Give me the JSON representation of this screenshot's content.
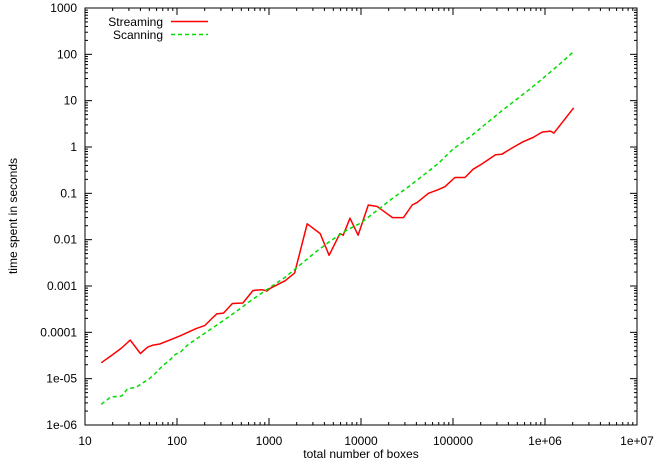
{
  "figure": {
    "background": "#ffffff",
    "axis_color": "#000000",
    "xlabel": "total number of boxes",
    "ylabel": "time spent in seconds"
  },
  "chart_data": {
    "type": "line",
    "title": "",
    "xlabel": "total number of boxes",
    "ylabel": "time spent in seconds",
    "x_scale": "log",
    "y_scale": "log",
    "xlim": [
      10,
      10000000
    ],
    "ylim": [
      1e-06,
      1000
    ],
    "x_tick_labels": [
      "10",
      "100",
      "1000",
      "10000",
      "100000",
      "1e+06",
      "1e+07"
    ],
    "y_tick_labels": [
      "1000",
      "100",
      "10",
      "1",
      "0.1",
      "0.01",
      "0.001",
      "0.0001",
      "1e-05",
      "1e-06"
    ],
    "grid": false,
    "legend": {
      "position": "top-left-inside",
      "entries": [
        "Streaming",
        "Scanning"
      ]
    },
    "series": [
      {
        "name": "Streaming",
        "color": "#ff0000",
        "line_style": "solid",
        "points": [
          [
            15,
            2.2e-05
          ],
          [
            20,
            3.3e-05
          ],
          [
            25,
            4.6e-05
          ],
          [
            31,
            6.8e-05
          ],
          [
            40,
            3.5e-05
          ],
          [
            48,
            4.8e-05
          ],
          [
            55,
            5.3e-05
          ],
          [
            65,
            5.6e-05
          ],
          [
            80,
            6.6e-05
          ],
          [
            110,
            8.5e-05
          ],
          [
            160,
            0.00012
          ],
          [
            200,
            0.00014
          ],
          [
            240,
            0.0002
          ],
          [
            270,
            0.00025
          ],
          [
            320,
            0.00026
          ],
          [
            400,
            0.00042
          ],
          [
            520,
            0.00043
          ],
          [
            670,
            0.0008
          ],
          [
            840,
            0.00083
          ],
          [
            950,
            0.00078
          ],
          [
            1020,
            0.00088
          ],
          [
            1500,
            0.0013
          ],
          [
            1900,
            0.0019
          ],
          [
            2600,
            0.022
          ],
          [
            3600,
            0.0135
          ],
          [
            4500,
            0.0046
          ],
          [
            5900,
            0.0135
          ],
          [
            6400,
            0.0125
          ],
          [
            7600,
            0.029
          ],
          [
            9300,
            0.0125
          ],
          [
            12000,
            0.056
          ],
          [
            15000,
            0.052
          ],
          [
            18000,
            0.04
          ],
          [
            22000,
            0.03
          ],
          [
            29000,
            0.03
          ],
          [
            36000,
            0.056
          ],
          [
            41000,
            0.064
          ],
          [
            54000,
            0.1
          ],
          [
            69000,
            0.12
          ],
          [
            82000,
            0.14
          ],
          [
            105000,
            0.22
          ],
          [
            135000,
            0.22
          ],
          [
            165000,
            0.33
          ],
          [
            210000,
            0.44
          ],
          [
            290000,
            0.68
          ],
          [
            340000,
            0.7
          ],
          [
            450000,
            0.98
          ],
          [
            580000,
            1.3
          ],
          [
            740000,
            1.6
          ],
          [
            930000,
            2.1
          ],
          [
            1150000,
            2.2
          ],
          [
            1250000,
            2.0
          ],
          [
            2050000,
            7.0
          ]
        ]
      },
      {
        "name": "Scanning",
        "color": "#00dd00",
        "line_style": "dashed",
        "points": [
          [
            15,
            2.8e-06
          ],
          [
            19,
            4e-06
          ],
          [
            25,
            4.2e-06
          ],
          [
            29,
            6e-06
          ],
          [
            36,
            6.5e-06
          ],
          [
            42,
            8e-06
          ],
          [
            50,
            1e-05
          ],
          [
            58,
            1.3e-05
          ],
          [
            70,
            1.9e-05
          ],
          [
            85,
            2.6e-05
          ],
          [
            95,
            3.3e-05
          ],
          [
            110,
            3.8e-05
          ],
          [
            130,
            5.3e-05
          ],
          [
            180,
            8.3e-05
          ],
          [
            230,
            0.000115
          ],
          [
            320,
            0.00018
          ],
          [
            450,
            0.00029
          ],
          [
            650,
            0.0005
          ],
          [
            1000,
            0.0009
          ],
          [
            1500,
            0.00155
          ],
          [
            2200,
            0.0029
          ],
          [
            3200,
            0.0054
          ],
          [
            4700,
            0.0095
          ],
          [
            7000,
            0.016
          ],
          [
            10000,
            0.023
          ],
          [
            15000,
            0.043
          ],
          [
            22000,
            0.078
          ],
          [
            33000,
            0.14
          ],
          [
            47000,
            0.24
          ],
          [
            70000,
            0.45
          ],
          [
            100000,
            0.9
          ],
          [
            150000,
            1.6
          ],
          [
            220000,
            3.0
          ],
          [
            320000,
            5.5
          ],
          [
            470000,
            10
          ],
          [
            690000,
            18
          ],
          [
            1000000,
            33
          ],
          [
            1450000,
            62
          ],
          [
            2050000,
            115
          ]
        ]
      }
    ]
  }
}
